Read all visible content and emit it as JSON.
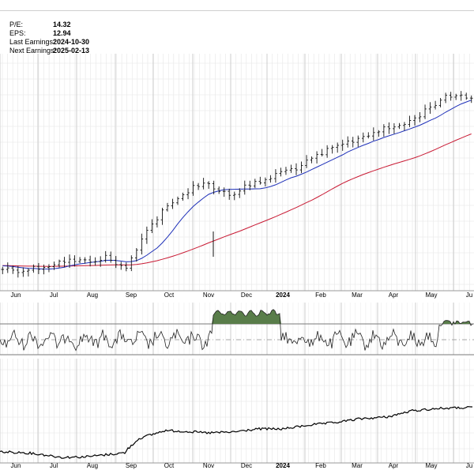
{
  "fundamentals": {
    "pe_label": "P/E:",
    "pe_value": "14.32",
    "eps_label": "EPS:",
    "eps_value": "12.94",
    "last_earnings_label": "Last Earnings:",
    "last_earnings_value": "2024-10-30",
    "next_earnings_label": "Next Earnings:",
    "next_earnings_value": "2025-02-13"
  },
  "chart_data": [
    {
      "type": "ohlc",
      "panel": "price",
      "x_tick_labels": [
        "Jun",
        "Jul",
        "Aug",
        "Sep",
        "Oct",
        "Nov",
        "Dec",
        "2024",
        "Feb",
        "Mar",
        "Apr",
        "May",
        "Ju"
      ],
      "bold_tick_labels": [
        "2024"
      ],
      "x_unit": "week",
      "price_knots": [
        [
          0,
          340
        ],
        [
          4,
          342
        ],
        [
          8,
          337
        ],
        [
          12,
          330
        ],
        [
          16,
          331
        ],
        [
          20,
          326
        ],
        [
          23,
          337
        ],
        [
          24,
          341
        ],
        [
          27,
          300
        ],
        [
          31,
          268
        ],
        [
          33,
          258
        ],
        [
          37,
          235
        ],
        [
          40,
          233
        ],
        [
          44,
          247
        ],
        [
          47,
          237
        ],
        [
          51,
          228
        ],
        [
          54,
          218
        ],
        [
          58,
          210
        ],
        [
          61,
          198
        ],
        [
          64,
          188
        ],
        [
          68,
          178
        ],
        [
          72,
          167
        ],
        [
          76,
          161
        ],
        [
          79,
          154
        ],
        [
          82,
          140
        ],
        [
          85,
          126
        ],
        [
          88,
          120
        ],
        [
          91,
          123
        ]
      ],
      "overlays": [
        {
          "name": "blue moving average",
          "color": "#1d2fb8"
        },
        {
          "name": "red moving average",
          "color": "#c81933"
        }
      ],
      "grid": true
    },
    {
      "type": "area",
      "panel": "oscillator",
      "color": "#6b8e5a",
      "overbought_fill": "#597d4a",
      "reference_lines": [
        "upper",
        "midline-dashed",
        "lower"
      ]
    },
    {
      "type": "line",
      "panel": "relative strength",
      "color": "#000000",
      "knots": [
        [
          0,
          572
        ],
        [
          5,
          573
        ],
        [
          9,
          576
        ],
        [
          12,
          579
        ],
        [
          17,
          578
        ],
        [
          23,
          574
        ],
        [
          24,
          573
        ],
        [
          27,
          555
        ],
        [
          32,
          545
        ],
        [
          36,
          546
        ],
        [
          40,
          548
        ],
        [
          45,
          547
        ],
        [
          50,
          543
        ],
        [
          55,
          543
        ],
        [
          60,
          538
        ],
        [
          65,
          535
        ],
        [
          70,
          530
        ],
        [
          75,
          528
        ],
        [
          80,
          520
        ],
        [
          85,
          517
        ],
        [
          91,
          516
        ]
      ],
      "grid": true
    }
  ]
}
